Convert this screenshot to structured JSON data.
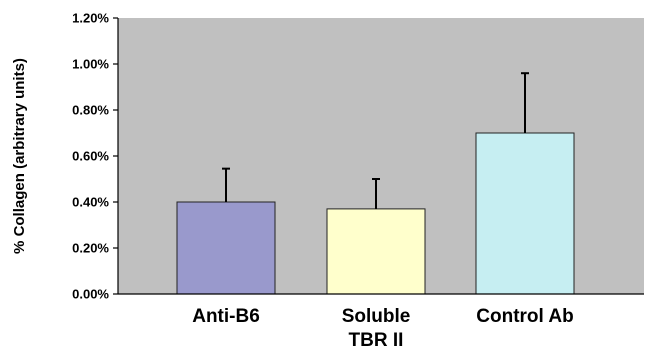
{
  "chart_data": {
    "type": "bar",
    "title": "",
    "xlabel": "",
    "ylabel": "% Collagen (arbitrary units)",
    "ylim": [
      0,
      1.2
    ],
    "yticks": [
      "0.00%",
      "0.20%",
      "0.40%",
      "0.60%",
      "0.80%",
      "1.00%",
      "1.20%"
    ],
    "ytick_values": [
      0,
      0.2,
      0.4,
      0.6,
      0.8,
      1.0,
      1.2
    ],
    "grid": false,
    "plot_background": "#c0c0c0",
    "categories": [
      {
        "lines": [
          "Anti-B6"
        ],
        "value": 0.4,
        "error": 0.145,
        "color": "#9999cc"
      },
      {
        "lines": [
          "Soluble",
          "TBR II"
        ],
        "value": 0.37,
        "error": 0.13,
        "color": "#ffffcc"
      },
      {
        "lines": [
          "Control Ab"
        ],
        "value": 0.7,
        "error": 0.26,
        "color": "#c6eef2"
      }
    ]
  }
}
